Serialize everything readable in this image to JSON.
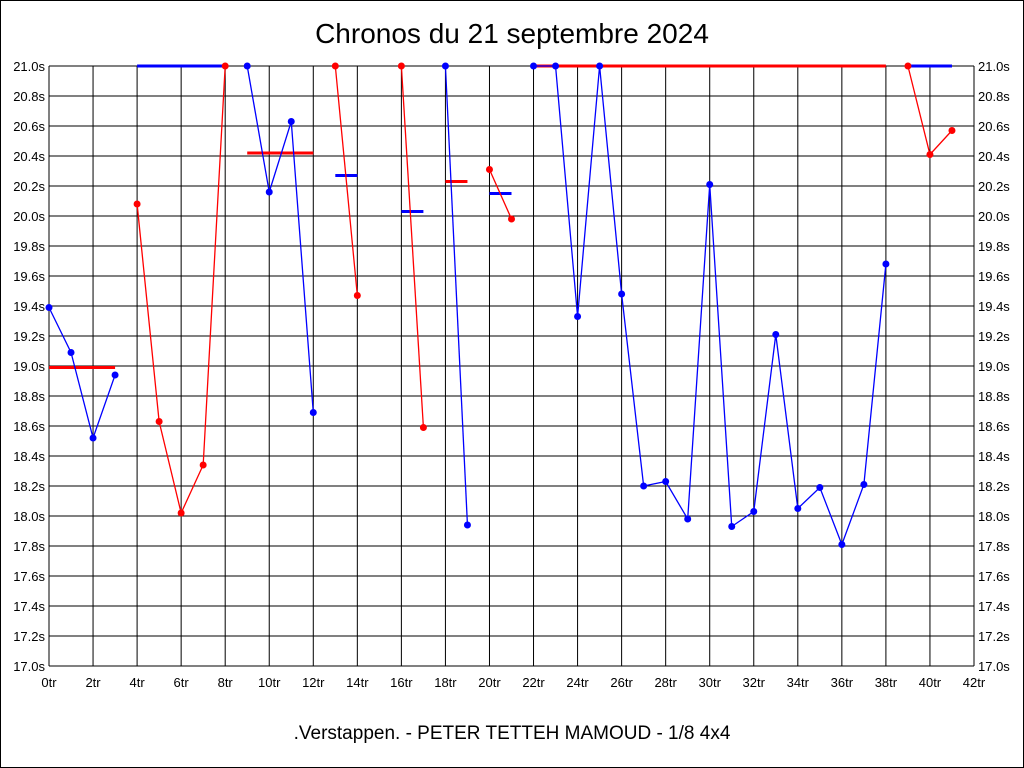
{
  "chart_data": {
    "type": "line",
    "title": "Chronos du 21 septembre 2024",
    "footer": ".Verstappen. - PETER TETTEH MAMOUD - 1/8 4x4",
    "xlim": [
      0,
      42
    ],
    "ylim": [
      17.0,
      21.0
    ],
    "x_tick_suffix": "tr",
    "y_tick_suffix": "s",
    "x_ticks": [
      "0tr",
      "2tr",
      "4tr",
      "6tr",
      "8tr",
      "10tr",
      "12tr",
      "14tr",
      "16tr",
      "18tr",
      "20tr",
      "22tr",
      "24tr",
      "26tr",
      "28tr",
      "30tr",
      "32tr",
      "34tr",
      "36tr",
      "38tr",
      "40tr",
      "42tr"
    ],
    "y_ticks": [
      "17.0s",
      "17.2s",
      "17.4s",
      "17.6s",
      "17.8s",
      "18.0s",
      "18.2s",
      "18.4s",
      "18.6s",
      "18.8s",
      "19.0s",
      "19.2s",
      "19.4s",
      "19.6s",
      "19.8s",
      "20.0s",
      "20.2s",
      "20.4s",
      "20.6s",
      "20.8s",
      "21.0s"
    ],
    "grid": true,
    "colors": {
      "blue": "#0000ff",
      "red": "#ff0000",
      "grid": "#000000"
    },
    "stints": [
      {
        "color": "#0000ff",
        "avg_color": "#ff0000",
        "average": 18.99,
        "points": [
          [
            0,
            19.39
          ],
          [
            1,
            19.09
          ],
          [
            2,
            18.52
          ],
          [
            3,
            18.94
          ]
        ]
      },
      {
        "color": "#ff0000",
        "avg_color": "#0000ff",
        "average": 21.0,
        "points": [
          [
            4,
            20.08
          ],
          [
            5,
            18.63
          ],
          [
            6,
            18.02
          ],
          [
            7,
            18.34
          ],
          [
            8,
            21.0
          ]
        ]
      },
      {
        "color": "#0000ff",
        "avg_color": "#ff0000",
        "average": 20.42,
        "points": [
          [
            9,
            21.0
          ],
          [
            10,
            20.16
          ],
          [
            11,
            20.63
          ],
          [
            12,
            18.69
          ]
        ]
      },
      {
        "color": "#ff0000",
        "avg_color": "#0000ff",
        "average": 20.27,
        "points": [
          [
            13,
            21.0
          ],
          [
            14,
            19.47
          ]
        ]
      },
      {
        "color": "#ff0000",
        "avg_color": "#0000ff",
        "average": 20.03,
        "points": [
          [
            16,
            21.0
          ],
          [
            17,
            18.59
          ]
        ]
      },
      {
        "color": "#0000ff",
        "avg_color": "#ff0000",
        "average": 20.23,
        "points": [
          [
            18,
            21.0
          ],
          [
            19,
            17.94
          ]
        ]
      },
      {
        "color": "#ff0000",
        "avg_color": "#0000ff",
        "average": 20.15,
        "points": [
          [
            20,
            20.31
          ],
          [
            21,
            19.98
          ]
        ]
      },
      {
        "color": "#0000ff",
        "avg_color": "#ff0000",
        "average": 21.0,
        "points": [
          [
            22,
            21.0
          ],
          [
            23,
            21.0
          ],
          [
            24,
            19.33
          ],
          [
            25,
            21.0
          ],
          [
            26,
            19.48
          ],
          [
            27,
            18.2
          ],
          [
            28,
            18.23
          ],
          [
            29,
            17.98
          ],
          [
            30,
            20.21
          ],
          [
            31,
            17.93
          ],
          [
            32,
            18.03
          ],
          [
            33,
            19.21
          ],
          [
            34,
            18.05
          ],
          [
            35,
            18.19
          ],
          [
            36,
            17.81
          ],
          [
            37,
            18.21
          ],
          [
            38,
            19.68
          ]
        ]
      },
      {
        "color": "#ff0000",
        "avg_color": "#0000ff",
        "average": 21.0,
        "points": [
          [
            39,
            21.0
          ],
          [
            40,
            20.41
          ],
          [
            41,
            20.57
          ]
        ]
      }
    ]
  }
}
